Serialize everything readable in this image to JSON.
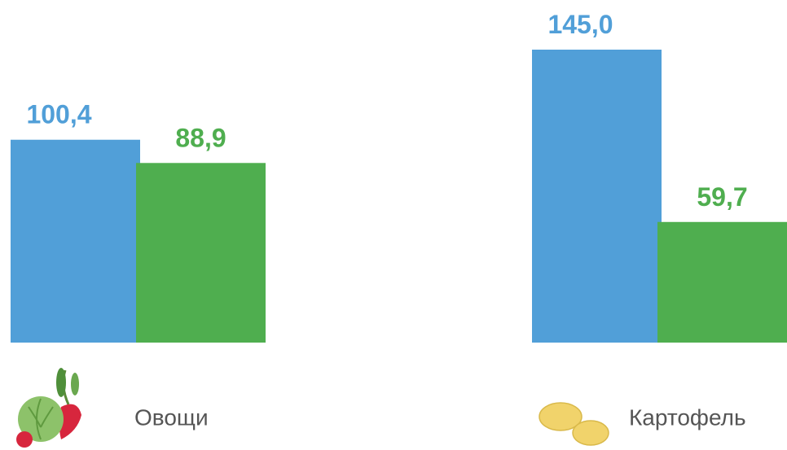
{
  "chart_data": {
    "type": "bar",
    "categories": [
      "Овощи",
      "Картофель"
    ],
    "series": [
      {
        "color": "#519fd8",
        "values": [
          100.4,
          145.0
        ],
        "value_labels": [
          "100,4",
          "145,0"
        ]
      },
      {
        "color": "#4fae4f",
        "values": [
          88.9,
          59.7
        ],
        "value_labels": [
          "88,9",
          "59,7"
        ]
      }
    ]
  }
}
